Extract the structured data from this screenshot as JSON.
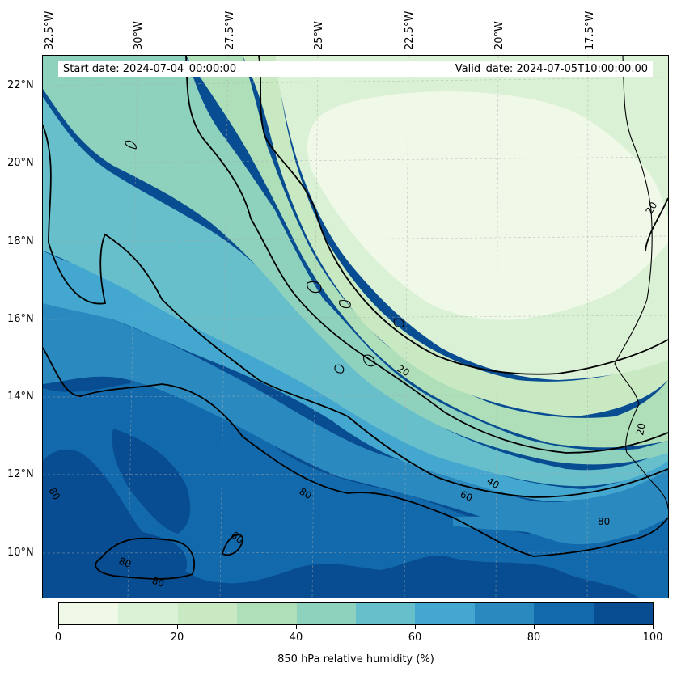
{
  "header": {
    "start_date": "Start date: 2024-07-04_00:00:00",
    "valid_date": "Valid_date: 2024-07-05T10:00:00.00"
  },
  "longitude_labels": [
    "32.5°W",
    "30°W",
    "27.5°W",
    "25°W",
    "22.5°W",
    "20°W",
    "17.5°W"
  ],
  "latitude_labels": [
    "22°N",
    "20°N",
    "18°N",
    "16°N",
    "14°N",
    "12°N",
    "10°N"
  ],
  "contour_labels": [
    "20",
    "20",
    "20",
    "40",
    "60",
    "80",
    "80",
    "80",
    "80",
    "80",
    "80"
  ],
  "colorbar": {
    "label": "850 hPa relative humidity (%)",
    "ticks": [
      "0",
      "20",
      "40",
      "60",
      "80",
      "100"
    ],
    "colors": [
      "#f0f9e8",
      "#dbf1d5",
      "#c9e9c3",
      "#aedfb9",
      "#8ed2be",
      "#66bfcb",
      "#43a7d0",
      "#2a8abf",
      "#1269ab",
      "#084d91"
    ]
  },
  "chart_data": {
    "type": "heatmap",
    "title": "",
    "variable": "850 hPa relative humidity (%)",
    "projection": "lat-lon map",
    "lon_range": [
      "32.5°W",
      "15.5°W"
    ],
    "lat_range": [
      "9°N",
      "22.8°N"
    ],
    "levels": [
      0,
      10,
      20,
      30,
      40,
      50,
      60,
      70,
      80,
      90,
      100
    ],
    "contour_levels": [
      20,
      40,
      60,
      80
    ],
    "gridlines": true
  }
}
